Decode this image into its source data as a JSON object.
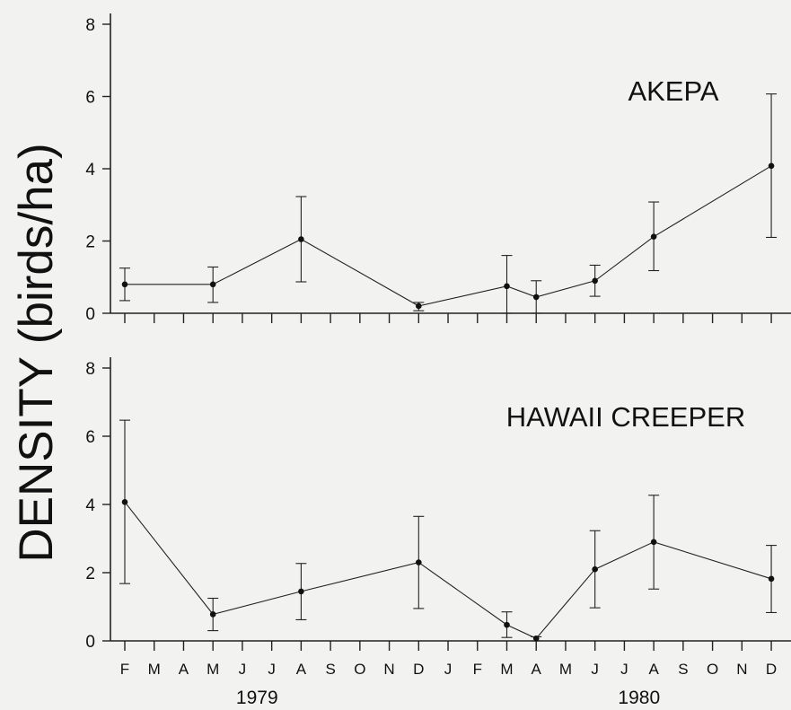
{
  "chart_data": {
    "type": "line",
    "ylabel": "DENSITY (birds/ha)",
    "x_tick_labels": [
      "F",
      "M",
      "A",
      "M",
      "J",
      "J",
      "A",
      "S",
      "O",
      "N",
      "D",
      "J",
      "F",
      "M",
      "A",
      "M",
      "J",
      "J",
      "A",
      "S",
      "O",
      "N",
      "D"
    ],
    "years": [
      {
        "label": "1979",
        "month_index": 4.5
      },
      {
        "label": "1980",
        "month_index": 17.5
      }
    ],
    "panels": [
      {
        "title": "AKEPA",
        "ylim": [
          0,
          8
        ],
        "yticks": [
          0,
          2,
          4,
          6,
          8
        ],
        "points": [
          {
            "month_index": 0,
            "y": 0.8,
            "low": 0.35,
            "high": 1.25
          },
          {
            "month_index": 3,
            "y": 0.8,
            "low": 0.3,
            "high": 1.28
          },
          {
            "month_index": 6,
            "y": 2.05,
            "low": 0.87,
            "high": 3.23
          },
          {
            "month_index": 10,
            "y": 0.2,
            "low": 0.07,
            "high": 0.3
          },
          {
            "month_index": 13,
            "y": 0.75,
            "low": 0.0,
            "high": 1.6
          },
          {
            "month_index": 14,
            "y": 0.45,
            "low": 0.0,
            "high": 0.9
          },
          {
            "month_index": 16,
            "y": 0.9,
            "low": 0.47,
            "high": 1.33
          },
          {
            "month_index": 18,
            "y": 2.12,
            "low": 1.18,
            "high": 3.08
          },
          {
            "month_index": 22,
            "y": 4.08,
            "low": 2.1,
            "high": 6.07
          }
        ]
      },
      {
        "title": "HAWAII CREEPER",
        "ylim": [
          0,
          8
        ],
        "yticks": [
          0,
          2,
          4,
          6,
          8
        ],
        "points": [
          {
            "month_index": 0,
            "y": 4.07,
            "low": 1.68,
            "high": 6.47
          },
          {
            "month_index": 3,
            "y": 0.78,
            "low": 0.3,
            "high": 1.25
          },
          {
            "month_index": 6,
            "y": 1.45,
            "low": 0.62,
            "high": 2.27
          },
          {
            "month_index": 10,
            "y": 2.3,
            "low": 0.95,
            "high": 3.65
          },
          {
            "month_index": 13,
            "y": 0.47,
            "low": 0.1,
            "high": 0.85
          },
          {
            "month_index": 14,
            "y": 0.07,
            "low": 0.0,
            "high": 0.12
          },
          {
            "month_index": 16,
            "y": 2.1,
            "low": 0.97,
            "high": 3.23
          },
          {
            "month_index": 18,
            "y": 2.9,
            "low": 1.52,
            "high": 4.27
          },
          {
            "month_index": 22,
            "y": 1.82,
            "low": 0.83,
            "high": 2.8
          }
        ]
      }
    ]
  }
}
